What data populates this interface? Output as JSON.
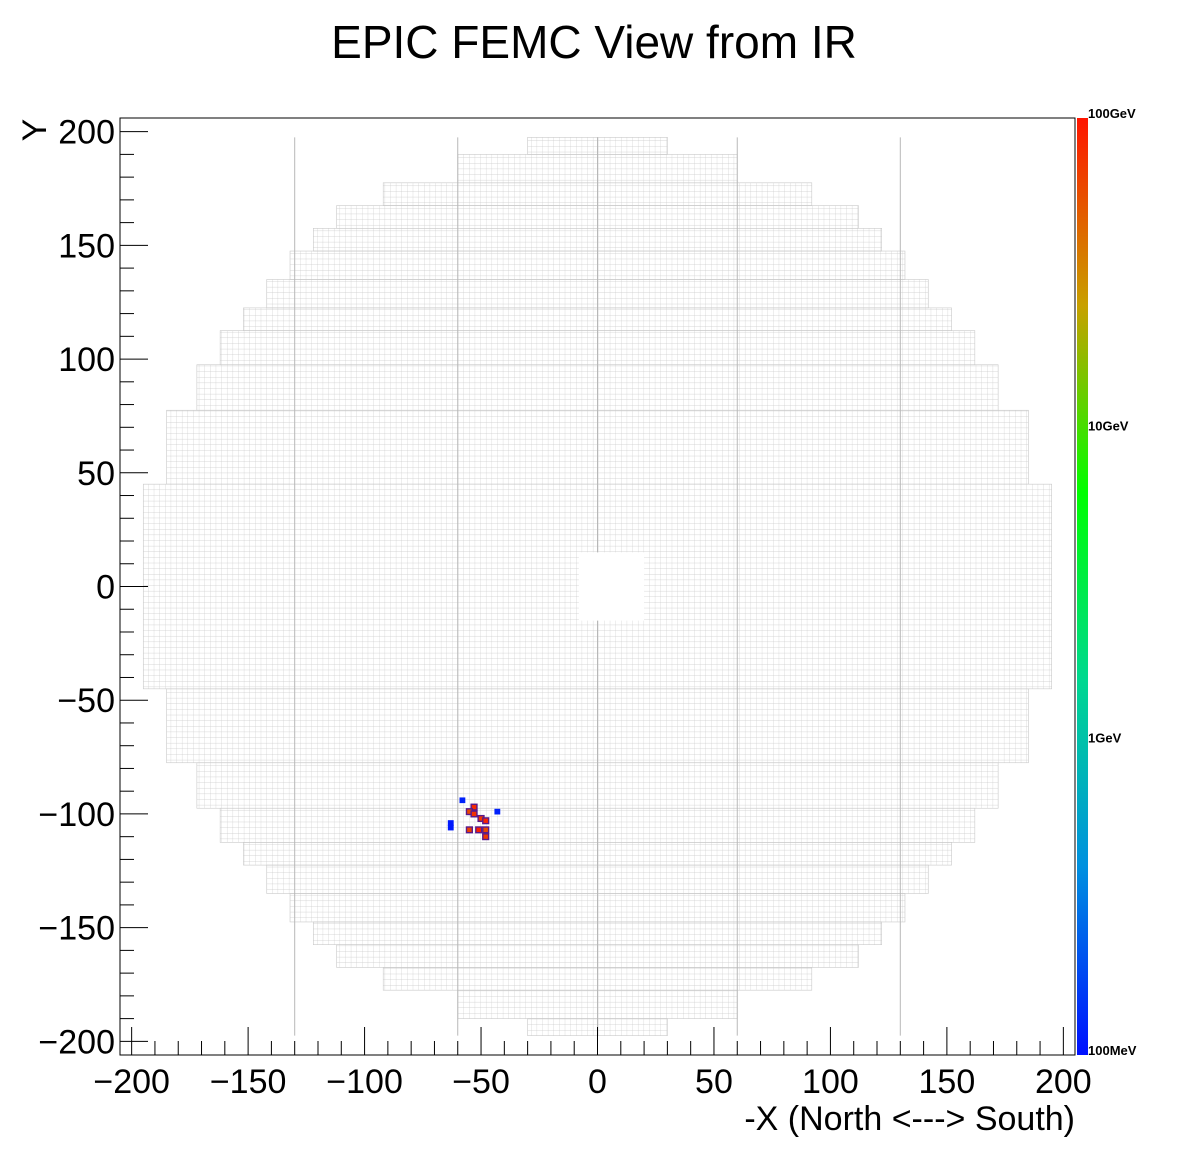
{
  "chart_data": {
    "type": "heatmap",
    "title": "EPIC FEMC View from IR",
    "xlabel": "-X (North <---> South)",
    "ylabel": "Y",
    "xlim": [
      -205,
      205
    ],
    "ylim": [
      -206,
      206
    ],
    "x_ticks": [
      -200,
      -150,
      -100,
      -50,
      0,
      50,
      100,
      150,
      200
    ],
    "y_ticks": [
      200,
      150,
      100,
      50,
      0,
      -50,
      -100,
      -150,
      -200
    ],
    "x_tick_labels": [
      "−200",
      "−150",
      "−100",
      "−50",
      "0",
      "50",
      "100",
      "150",
      "200"
    ],
    "y_tick_labels": [
      "200",
      "150",
      "100",
      "50",
      "0",
      "−50",
      "−100",
      "−150",
      "−200"
    ],
    "colorbar": {
      "scale": "log",
      "range_gev": [
        0.1,
        100
      ],
      "labels": [
        {
          "value": 100,
          "text": "100GeV"
        },
        {
          "value": 10,
          "text": "10GeV"
        },
        {
          "value": 1,
          "text": "1GeV"
        },
        {
          "value": 0.1,
          "text": "100MeV"
        }
      ],
      "colors": [
        "#0010ff",
        "#0090e0",
        "#00d890",
        "#00ff00",
        "#c8a000",
        "#ff1500"
      ]
    },
    "detector_outline": {
      "cell_size": 2.5,
      "rows": [
        {
          "y": [
            190,
            197.5
          ],
          "xmin": -30,
          "xmax": 30
        },
        {
          "y": [
            177.5,
            190
          ],
          "xmin": -60,
          "xmax": 60
        },
        {
          "y": [
            167.5,
            177.5
          ],
          "xmin": -92,
          "xmax": 92
        },
        {
          "y": [
            157.5,
            167.5
          ],
          "xmin": -112,
          "xmax": 112
        },
        {
          "y": [
            147.5,
            157.5
          ],
          "xmin": -122,
          "xmax": 122
        },
        {
          "y": [
            135,
            147.5
          ],
          "xmin": -132,
          "xmax": 132
        },
        {
          "y": [
            122.5,
            135
          ],
          "xmin": -142,
          "xmax": 142
        },
        {
          "y": [
            112.5,
            122.5
          ],
          "xmin": -152,
          "xmax": 152
        },
        {
          "y": [
            97.5,
            112.5
          ],
          "xmin": -162,
          "xmax": 162
        },
        {
          "y": [
            77.5,
            97.5
          ],
          "xmin": -172,
          "xmax": 172
        },
        {
          "y": [
            45,
            77.5
          ],
          "xmin": -185,
          "xmax": 185
        },
        {
          "y": [
            -45,
            45
          ],
          "xmin": -195,
          "xmax": 195
        },
        {
          "y": [
            -77.5,
            -45
          ],
          "xmin": -185,
          "xmax": 185
        },
        {
          "y": [
            -97.5,
            -77.5
          ],
          "xmin": -172,
          "xmax": 172
        },
        {
          "y": [
            -112.5,
            -97.5
          ],
          "xmin": -162,
          "xmax": 162
        },
        {
          "y": [
            -122.5,
            -112.5
          ],
          "xmin": -152,
          "xmax": 152
        },
        {
          "y": [
            -135,
            -122.5
          ],
          "xmin": -142,
          "xmax": 142
        },
        {
          "y": [
            -147.5,
            -135
          ],
          "xmin": -132,
          "xmax": 132
        },
        {
          "y": [
            -157.5,
            -147.5
          ],
          "xmin": -122,
          "xmax": 122
        },
        {
          "y": [
            -167.5,
            -157.5
          ],
          "xmin": -112,
          "xmax": 112
        },
        {
          "y": [
            -177.5,
            -167.5
          ],
          "xmin": -92,
          "xmax": 92
        },
        {
          "y": [
            -190,
            -177.5
          ],
          "xmin": -60,
          "xmax": 60
        },
        {
          "y": [
            -197.5,
            -190
          ],
          "xmin": -30,
          "xmax": 30
        }
      ],
      "beam_hole": {
        "x": [
          -8,
          20
        ],
        "y": [
          -15,
          15
        ]
      }
    },
    "hits": [
      {
        "x": -58,
        "y": -94,
        "energy_gev": 0.12
      },
      {
        "x": -63,
        "y": -104,
        "energy_gev": 0.11
      },
      {
        "x": -63,
        "y": -106,
        "energy_gev": 0.11
      },
      {
        "x": -43,
        "y": -99,
        "energy_gev": 0.12
      },
      {
        "x": -53,
        "y": -97,
        "energy_gev": 80
      },
      {
        "x": -55,
        "y": -99,
        "energy_gev": 60
      },
      {
        "x": -53,
        "y": -100,
        "energy_gev": 75
      },
      {
        "x": -50,
        "y": -102,
        "energy_gev": 70
      },
      {
        "x": -48,
        "y": -103,
        "energy_gev": 85
      },
      {
        "x": -55,
        "y": -107,
        "energy_gev": 65
      },
      {
        "x": -51,
        "y": -107,
        "energy_gev": 90
      },
      {
        "x": -48,
        "y": -107,
        "energy_gev": 60
      },
      {
        "x": -48,
        "y": -110,
        "energy_gev": 70
      }
    ]
  }
}
